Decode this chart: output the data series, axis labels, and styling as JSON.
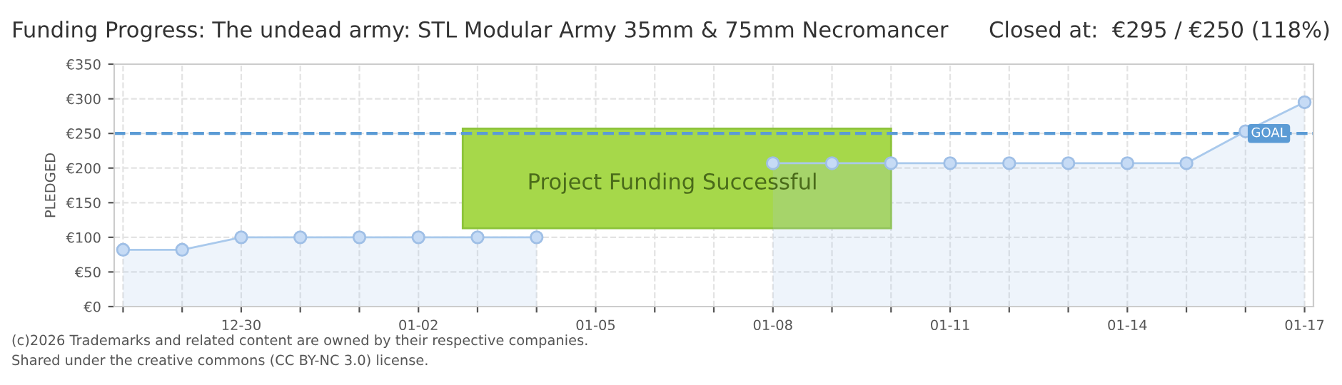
{
  "chart_data": {
    "type": "area",
    "title": "Funding Progress: The undead army: STL Modular Army 35mm & 75mm Necromancer",
    "subtitle": "Closed at:  €295 / €250 (118%)",
    "ylabel": "PLEDGED",
    "categories": [
      null,
      null,
      "12-30",
      null,
      null,
      "01-02",
      null,
      null,
      "01-05",
      null,
      null,
      "01-08",
      null,
      null,
      "01-11",
      null,
      null,
      "01-14",
      null,
      null,
      "01-17"
    ],
    "series": [
      {
        "color": "#a9c9ec",
        "values": [
          82,
          82,
          100,
          100,
          100,
          100,
          100,
          100,
          null,
          null,
          null,
          207,
          207,
          207,
          207,
          207,
          207,
          207,
          207,
          253,
          295
        ]
      }
    ],
    "ylim": [
      0,
      350
    ],
    "yticks": [
      {
        "value": 0,
        "label": "€0"
      },
      {
        "value": 50,
        "label": "€50"
      },
      {
        "value": 100,
        "label": "€100"
      },
      {
        "value": 150,
        "label": "€150"
      },
      {
        "value": 200,
        "label": "€200"
      },
      {
        "value": 250,
        "label": "€250"
      },
      {
        "value": 300,
        "label": "€300"
      },
      {
        "value": 350,
        "label": "€350"
      }
    ],
    "grid": true,
    "marker": "circle",
    "legend": false,
    "ref_lines": [
      {
        "axis": "y",
        "value": 250,
        "label": "GOAL",
        "color": "#5b9bd5",
        "line_style": "dashed"
      }
    ],
    "annotations": [
      "Project Funding Successful",
      "(c)2026 Trademarks and related content are owned by their respective companies.",
      "Shared under the creative commons (CC BY-NC 3.0) license."
    ]
  }
}
